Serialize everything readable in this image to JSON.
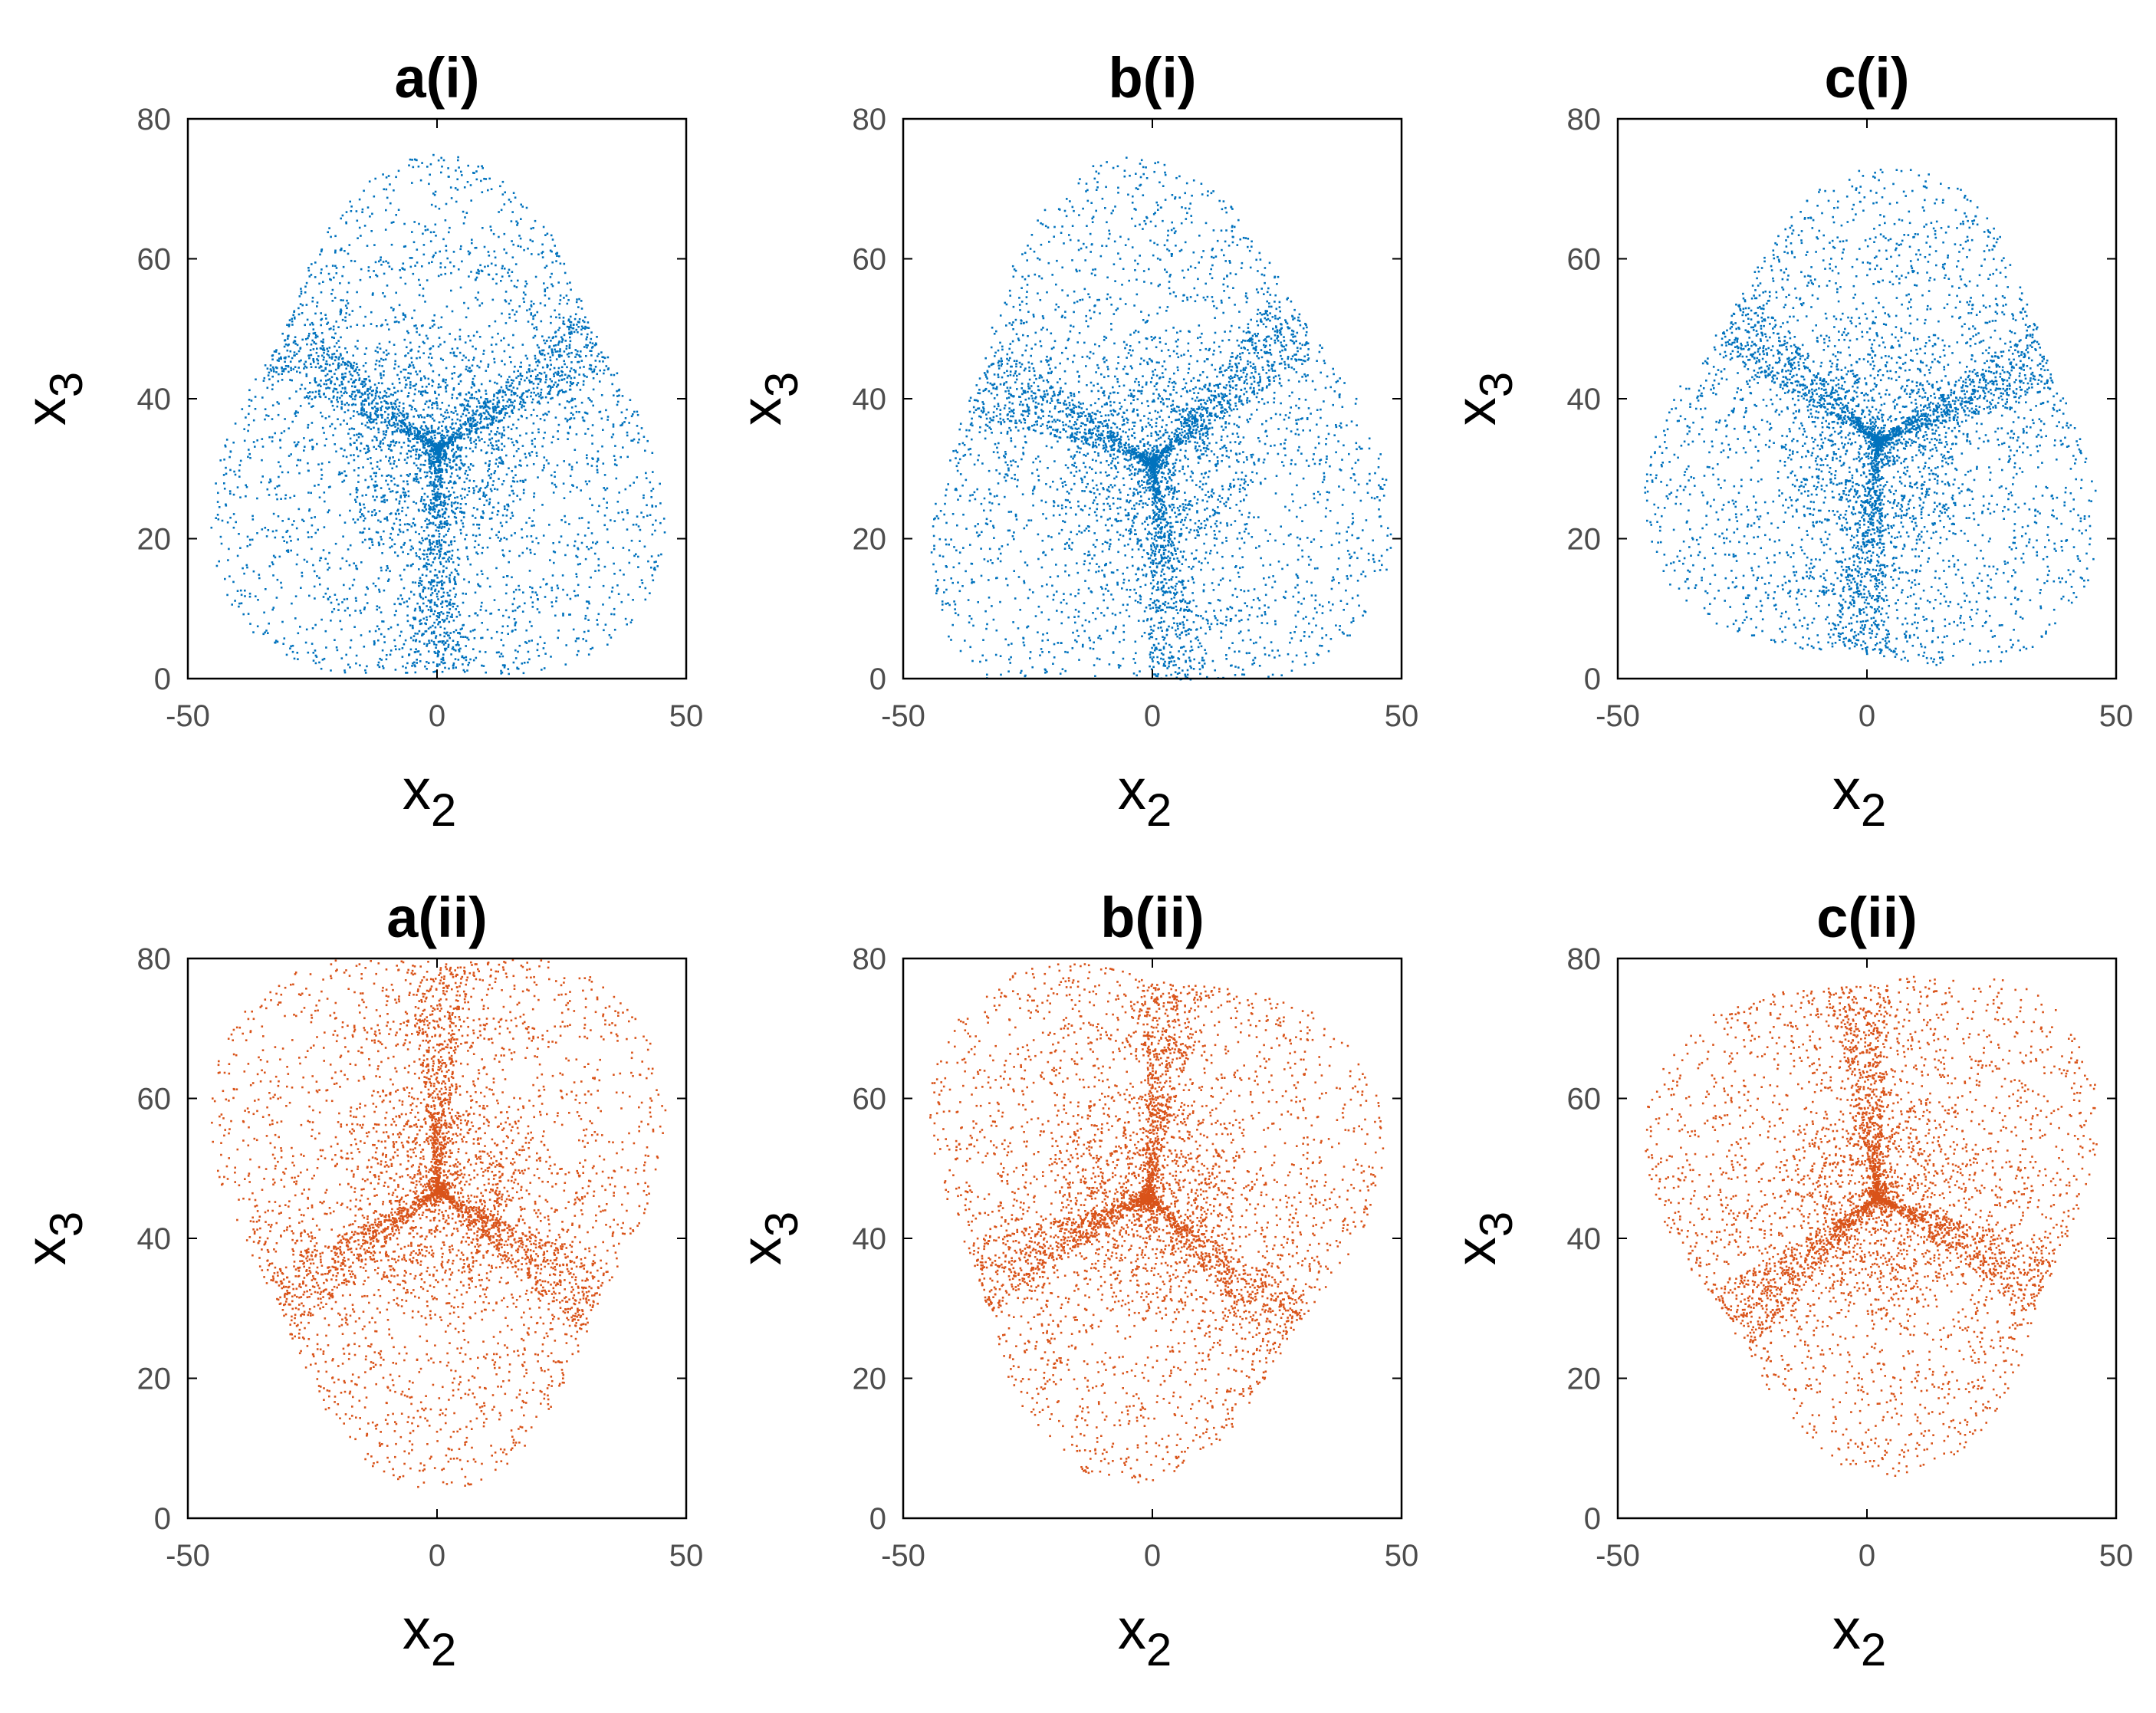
{
  "colors": {
    "top_row_points": "#0072BD",
    "bottom_row_points": "#D95319",
    "axes": "#000000",
    "tick_text": "#4d4d4d",
    "title_text": "#000000"
  },
  "chart_data": [
    {
      "type": "scatter",
      "title": "a(i)",
      "xlabel": "x",
      "xlabel_sub": "2",
      "ylabel": "x",
      "ylabel_sub": "3",
      "xlim": [
        -50,
        50
      ],
      "ylim": [
        0,
        80
      ],
      "xticks": [
        "-50",
        "0",
        "50"
      ],
      "yticks": [
        "0",
        "20",
        "40",
        "60",
        "80"
      ],
      "grid": false,
      "marker": "point",
      "color": "#0072BD",
      "attractor": {
        "center": [
          0,
          33
        ],
        "extent_x": [
          -47,
          49
        ],
        "extent_y": [
          2,
          75
        ],
        "lobes": 3,
        "rotation_deg": 0
      }
    },
    {
      "type": "scatter",
      "title": "b(i)",
      "xlabel": "x",
      "xlabel_sub": "2",
      "ylabel": "x",
      "ylabel_sub": "3",
      "xlim": [
        -50,
        50
      ],
      "ylim": [
        0,
        80
      ],
      "xticks": [
        "-50",
        "0",
        "50"
      ],
      "yticks": [
        "0",
        "20",
        "40",
        "60",
        "80"
      ],
      "grid": false,
      "marker": "point",
      "color": "#0072BD",
      "attractor": {
        "center": [
          0,
          31
        ],
        "extent_x": [
          -50,
          48
        ],
        "extent_y": [
          0,
          75
        ],
        "lobes": 3,
        "rotation_deg": 8
      }
    },
    {
      "type": "scatter",
      "title": "c(i)",
      "xlabel": "x",
      "xlabel_sub": "2",
      "ylabel": "x",
      "ylabel_sub": "3",
      "xlim": [
        -50,
        50
      ],
      "ylim": [
        0,
        80
      ],
      "xticks": [
        "-50",
        "0",
        "50"
      ],
      "yticks": [
        "0",
        "20",
        "40",
        "60",
        "80"
      ],
      "grid": false,
      "marker": "point",
      "color": "#0072BD",
      "attractor": {
        "center": [
          2,
          34
        ],
        "extent_x": [
          -47,
          48
        ],
        "extent_y": [
          0,
          74
        ],
        "lobes": 3,
        "rotation_deg": -6
      }
    },
    {
      "type": "scatter",
      "title": "a(ii)",
      "xlabel": "x",
      "xlabel_sub": "2",
      "ylabel": "x",
      "ylabel_sub": "3",
      "xlim": [
        -50,
        50
      ],
      "ylim": [
        0,
        80
      ],
      "xticks": [
        "-50",
        "0",
        "50"
      ],
      "yticks": [
        "0",
        "20",
        "40",
        "60",
        "80"
      ],
      "grid": false,
      "marker": "point",
      "color": "#D95319",
      "attractor": {
        "center": [
          0,
          47
        ],
        "extent_x": [
          -46,
          49
        ],
        "extent_y": [
          4,
          80
        ],
        "lobes": 3,
        "rotation_deg": 180
      }
    },
    {
      "type": "scatter",
      "title": "b(ii)",
      "xlabel": "x",
      "xlabel_sub": "2",
      "ylabel": "x",
      "ylabel_sub": "3",
      "xlim": [
        -50,
        50
      ],
      "ylim": [
        0,
        80
      ],
      "xticks": [
        "-50",
        "0",
        "50"
      ],
      "yticks": [
        "0",
        "20",
        "40",
        "60",
        "80"
      ],
      "grid": false,
      "marker": "point",
      "color": "#D95319",
      "attractor": {
        "center": [
          -1,
          46
        ],
        "extent_x": [
          -50,
          48
        ],
        "extent_y": [
          5,
          80
        ],
        "lobes": 3,
        "rotation_deg": 172
      }
    },
    {
      "type": "scatter",
      "title": "c(ii)",
      "xlabel": "x",
      "xlabel_sub": "2",
      "ylabel": "x",
      "ylabel_sub": "3",
      "xlim": [
        -50,
        50
      ],
      "ylim": [
        0,
        80
      ],
      "xticks": [
        "-50",
        "0",
        "50"
      ],
      "yticks": [
        "0",
        "20",
        "40",
        "60",
        "80"
      ],
      "grid": false,
      "marker": "point",
      "color": "#D95319",
      "attractor": {
        "center": [
          2,
          46
        ],
        "extent_x": [
          -47,
          48
        ],
        "extent_y": [
          6,
          80
        ],
        "lobes": 3,
        "rotation_deg": 186
      }
    }
  ]
}
